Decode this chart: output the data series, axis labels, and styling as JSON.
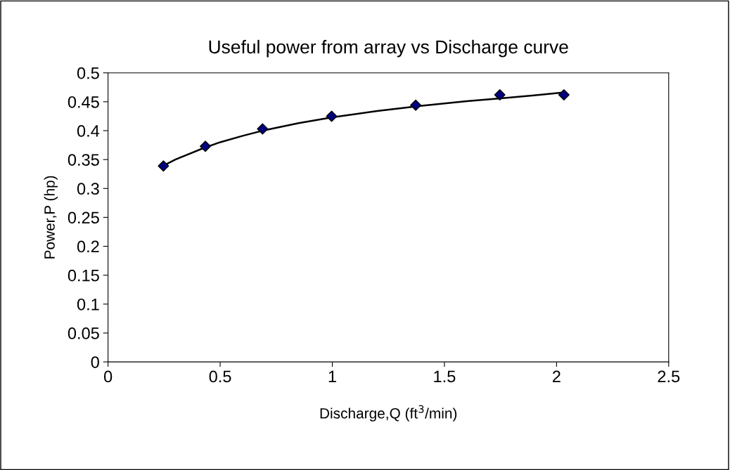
{
  "chart_data": {
    "type": "scatter",
    "title": "Useful power from array vs Discharge curve",
    "xlabel": "Discharge,Q (ft$^{3}$/min)",
    "ylabel": "Power,P (hp)",
    "series": [
      {
        "color": "#000080",
        "marker": "diamond",
        "x": [
          0.247,
          0.434,
          0.689,
          0.997,
          1.372,
          1.747,
          2.033
        ],
        "values": [
          0.339,
          0.373,
          0.403,
          0.425,
          0.444,
          0.462,
          0.462
        ]
      },
      {
        "type": "line",
        "color": "#000000",
        "marker": "none",
        "x": [
          0.25,
          0.3,
          0.35,
          0.42,
          0.5,
          0.6,
          0.7,
          0.85,
          1.0,
          1.2,
          1.4,
          1.6,
          1.75,
          1.9,
          2.03
        ],
        "values": [
          0.34,
          0.35,
          0.358,
          0.369,
          0.38,
          0.391,
          0.401,
          0.413,
          0.423,
          0.434,
          0.443,
          0.451,
          0.456,
          0.461,
          0.466
        ]
      }
    ],
    "xlim": [
      0,
      2.5
    ],
    "xticks": [
      0,
      0.5,
      1,
      1.5,
      2,
      2.5
    ],
    "ylim": [
      0,
      0.5
    ],
    "yticks": [
      0,
      0.05,
      0.1,
      0.15,
      0.2,
      0.25,
      0.3,
      0.35,
      0.4,
      0.45,
      0.5
    ],
    "grid": false,
    "legend": false
  }
}
